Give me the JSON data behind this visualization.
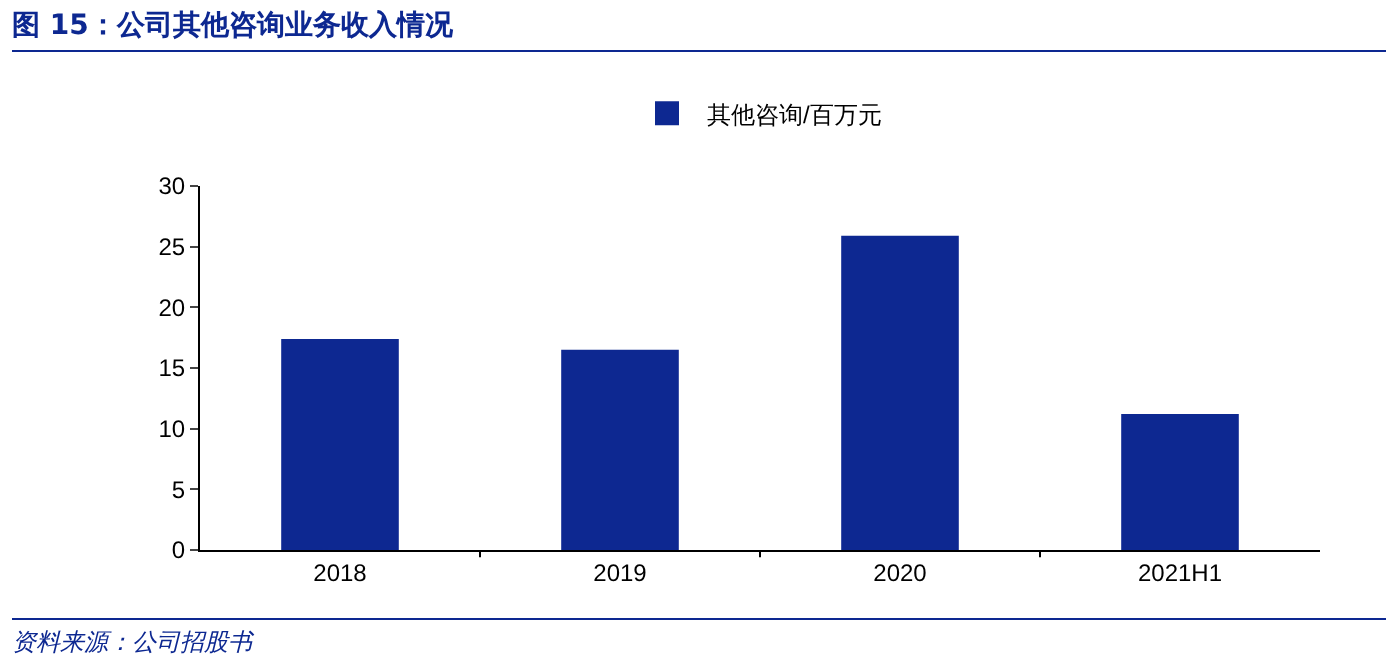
{
  "chart_data": {
    "type": "bar",
    "title": "图 15：公司其他咨询业务收入情况",
    "categories": [
      "2018",
      "2019",
      "2020",
      "2021H1"
    ],
    "series": [
      {
        "name": "其他咨询/百万元",
        "color": "#0d2891",
        "values": [
          17.4,
          16.5,
          25.9,
          11.2
        ]
      }
    ],
    "ylim": [
      0,
      30
    ],
    "yticks": [
      0,
      5,
      10,
      15,
      20,
      25,
      30
    ],
    "grid": false,
    "legend": "top",
    "annotations": [
      "资料来源：公司招股书"
    ]
  }
}
